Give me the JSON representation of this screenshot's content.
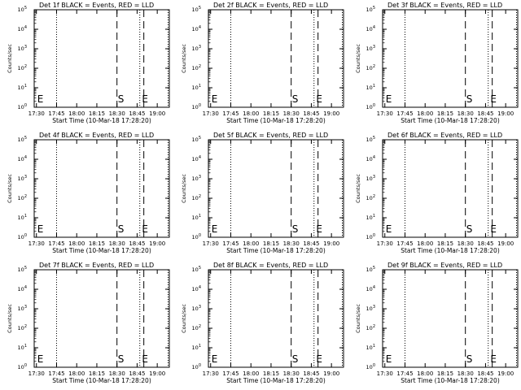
{
  "figure": {
    "start_time_label": "Start Time (10-Mar-18 17:28:20)",
    "ylabel": "Counts/sec"
  },
  "chart_data": [
    {
      "type": "line",
      "title": "Det 1f BLACK = Events, RED = LLD",
      "xlabel": "Start Time (10-Mar-18 17:28:20)",
      "ylabel": "Counts/sec",
      "y_scale": "log",
      "xlim": [
        "17:28:20",
        "19:09"
      ],
      "ylim": [
        1,
        100000
      ],
      "x_ticks": [
        "17:30",
        "17:45",
        "18:00",
        "18:15",
        "18:30",
        "18:45",
        "19:00"
      ],
      "y_ticks": [
        "10^0",
        "10^1",
        "10^2",
        "10^3",
        "10^4",
        "10^5"
      ],
      "dotted_markers": [
        "17:45",
        "18:47",
        "19:09"
      ],
      "dashed_markers": [
        "18:30",
        "18:50"
      ],
      "marker_letters": [
        {
          "text": "E",
          "at": "17:30"
        },
        {
          "text": "S",
          "at": "18:30"
        },
        {
          "text": "E",
          "at": "18:48"
        }
      ]
    },
    {
      "type": "line",
      "title": "Det 2f BLACK = Events, RED = LLD",
      "xlabel": "Start Time (10-Mar-18 17:28:20)",
      "ylabel": "Counts/sec",
      "y_scale": "log",
      "xlim": [
        "17:28:20",
        "19:09"
      ],
      "ylim": [
        1,
        100000
      ],
      "x_ticks": [
        "17:30",
        "17:45",
        "18:00",
        "18:15",
        "18:30",
        "18:45",
        "19:00"
      ],
      "y_ticks": [
        "10^0",
        "10^1",
        "10^2",
        "10^3",
        "10^4",
        "10^5"
      ],
      "dotted_markers": [
        "17:45",
        "18:47",
        "19:09"
      ],
      "dashed_markers": [
        "18:30",
        "18:50"
      ],
      "marker_letters": [
        {
          "text": "E",
          "at": "17:30"
        },
        {
          "text": "S",
          "at": "18:30"
        },
        {
          "text": "E",
          "at": "18:48"
        }
      ]
    },
    {
      "type": "line",
      "title": "Det 3f BLACK = Events, RED = LLD",
      "xlabel": "Start Time (10-Mar-18 17:28:20)",
      "ylabel": "Counts/sec",
      "y_scale": "log",
      "xlim": [
        "17:28:20",
        "19:09"
      ],
      "ylim": [
        1,
        100000
      ],
      "x_ticks": [
        "17:30",
        "17:45",
        "18:00",
        "18:15",
        "18:30",
        "18:45",
        "19:00"
      ],
      "y_ticks": [
        "10^0",
        "10^1",
        "10^2",
        "10^3",
        "10^4",
        "10^5"
      ],
      "dotted_markers": [
        "17:45",
        "18:47",
        "19:09"
      ],
      "dashed_markers": [
        "18:30",
        "18:50"
      ],
      "marker_letters": [
        {
          "text": "E",
          "at": "17:30"
        },
        {
          "text": "S",
          "at": "18:30"
        },
        {
          "text": "E",
          "at": "18:48"
        }
      ]
    },
    {
      "type": "line",
      "title": "Det 4f BLACK = Events, RED = LLD",
      "xlabel": "Start Time (10-Mar-18 17:28:20)",
      "ylabel": "Counts/sec",
      "y_scale": "log",
      "xlim": [
        "17:28:20",
        "19:09"
      ],
      "ylim": [
        1,
        100000
      ],
      "x_ticks": [
        "17:30",
        "17:45",
        "18:00",
        "18:15",
        "18:30",
        "18:45",
        "19:00"
      ],
      "y_ticks": [
        "10^0",
        "10^1",
        "10^2",
        "10^3",
        "10^4",
        "10^5"
      ],
      "dotted_markers": [
        "17:45",
        "18:47",
        "19:09"
      ],
      "dashed_markers": [
        "18:30",
        "18:50"
      ],
      "marker_letters": [
        {
          "text": "E",
          "at": "17:30"
        },
        {
          "text": "S",
          "at": "18:30"
        },
        {
          "text": "E",
          "at": "18:48"
        }
      ]
    },
    {
      "type": "line",
      "title": "Det 5f BLACK = Events, RED = LLD",
      "xlabel": "Start Time (10-Mar-18 17:28:20)",
      "ylabel": "Counts/sec",
      "y_scale": "log",
      "xlim": [
        "17:28:20",
        "19:09"
      ],
      "ylim": [
        1,
        100000
      ],
      "x_ticks": [
        "17:30",
        "17:45",
        "18:00",
        "18:15",
        "18:30",
        "18:45",
        "19:00"
      ],
      "y_ticks": [
        "10^0",
        "10^1",
        "10^2",
        "10^3",
        "10^4",
        "10^5"
      ],
      "dotted_markers": [
        "17:45",
        "18:47",
        "19:09"
      ],
      "dashed_markers": [
        "18:30",
        "18:50"
      ],
      "marker_letters": [
        {
          "text": "E",
          "at": "17:30"
        },
        {
          "text": "S",
          "at": "18:30"
        },
        {
          "text": "E",
          "at": "18:48"
        }
      ]
    },
    {
      "type": "line",
      "title": "Det 6f BLACK = Events, RED = LLD",
      "xlabel": "Start Time (10-Mar-18 17:28:20)",
      "ylabel": "Counts/sec",
      "y_scale": "log",
      "xlim": [
        "17:28:20",
        "19:09"
      ],
      "ylim": [
        1,
        100000
      ],
      "x_ticks": [
        "17:30",
        "17:45",
        "18:00",
        "18:15",
        "18:30",
        "18:45",
        "19:00"
      ],
      "y_ticks": [
        "10^0",
        "10^1",
        "10^2",
        "10^3",
        "10^4",
        "10^5"
      ],
      "dotted_markers": [
        "17:45",
        "18:47",
        "19:09"
      ],
      "dashed_markers": [
        "18:30",
        "18:50"
      ],
      "marker_letters": [
        {
          "text": "E",
          "at": "17:30"
        },
        {
          "text": "S",
          "at": "18:30"
        },
        {
          "text": "E",
          "at": "18:48"
        }
      ]
    },
    {
      "type": "line",
      "title": "Det 7f BLACK = Events, RED = LLD",
      "xlabel": "Start Time (10-Mar-18 17:28:20)",
      "ylabel": "Counts/sec",
      "y_scale": "log",
      "xlim": [
        "17:28:20",
        "19:09"
      ],
      "ylim": [
        1,
        100000
      ],
      "x_ticks": [
        "17:30",
        "17:45",
        "18:00",
        "18:15",
        "18:30",
        "18:45",
        "19:00"
      ],
      "y_ticks": [
        "10^0",
        "10^1",
        "10^2",
        "10^3",
        "10^4",
        "10^5"
      ],
      "dotted_markers": [
        "17:45",
        "18:47",
        "19:09"
      ],
      "dashed_markers": [
        "18:30",
        "18:50"
      ],
      "marker_letters": [
        {
          "text": "E",
          "at": "17:30"
        },
        {
          "text": "S",
          "at": "18:30"
        },
        {
          "text": "E",
          "at": "18:48"
        }
      ]
    },
    {
      "type": "line",
      "title": "Det 8f BLACK = Events, RED = LLD",
      "xlabel": "Start Time (10-Mar-18 17:28:20)",
      "ylabel": "Counts/sec",
      "y_scale": "log",
      "xlim": [
        "17:28:20",
        "19:09"
      ],
      "ylim": [
        1,
        100000
      ],
      "x_ticks": [
        "17:30",
        "17:45",
        "18:00",
        "18:15",
        "18:30",
        "18:45",
        "19:00"
      ],
      "y_ticks": [
        "10^0",
        "10^1",
        "10^2",
        "10^3",
        "10^4",
        "10^5"
      ],
      "dotted_markers": [
        "17:45",
        "18:47",
        "19:09"
      ],
      "dashed_markers": [
        "18:30",
        "18:50"
      ],
      "marker_letters": [
        {
          "text": "E",
          "at": "17:30"
        },
        {
          "text": "S",
          "at": "18:30"
        },
        {
          "text": "E",
          "at": "18:48"
        }
      ]
    },
    {
      "type": "line",
      "title": "Det 9f BLACK = Events, RED = LLD",
      "xlabel": "Start Time (10-Mar-18 17:28:20)",
      "ylabel": "Counts/sec",
      "y_scale": "log",
      "xlim": [
        "17:28:20",
        "19:09"
      ],
      "ylim": [
        1,
        100000
      ],
      "x_ticks": [
        "17:30",
        "17:45",
        "18:00",
        "18:15",
        "18:30",
        "18:45",
        "19:00"
      ],
      "y_ticks": [
        "10^0",
        "10^1",
        "10^2",
        "10^3",
        "10^4",
        "10^5"
      ],
      "dotted_markers": [
        "17:45",
        "18:47",
        "19:09"
      ],
      "dashed_markers": [
        "18:30",
        "18:50"
      ],
      "marker_letters": [
        {
          "text": "E",
          "at": "17:30"
        },
        {
          "text": "S",
          "at": "18:30"
        },
        {
          "text": "E",
          "at": "18:48"
        }
      ]
    }
  ]
}
